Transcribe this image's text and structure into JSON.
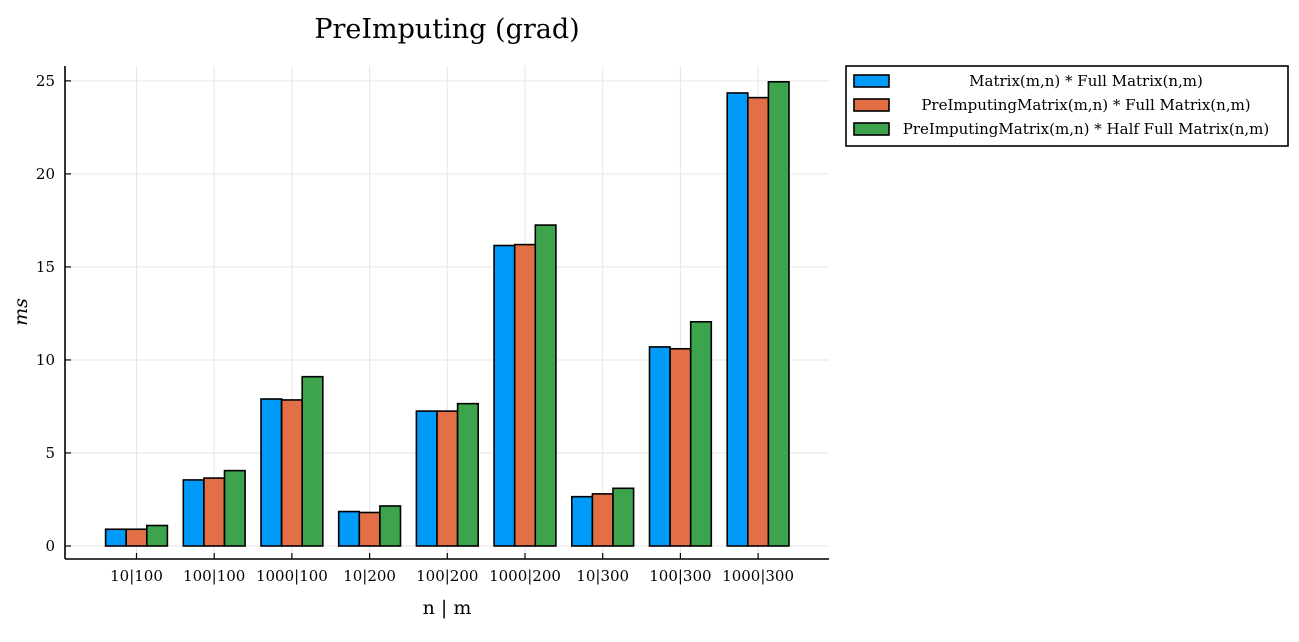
{
  "chart_data": {
    "type": "bar",
    "title": "PreImputing (grad)",
    "xlabel": "n | m",
    "ylabel": "ms",
    "categories": [
      "10|100",
      "100|100",
      "1000|100",
      "10|200",
      "100|200",
      "1000|200",
      "10|300",
      "100|300",
      "1000|300"
    ],
    "series": [
      {
        "name": "Matrix(m,n) * Full Matrix(n,m)",
        "color": "#009af9",
        "values": [
          0.9,
          3.55,
          7.9,
          1.85,
          7.25,
          16.15,
          2.65,
          10.7,
          24.35
        ]
      },
      {
        "name": "PreImputingMatrix(m,n) * Full Matrix(n,m)",
        "color": "#e26f46",
        "values": [
          0.9,
          3.65,
          7.85,
          1.8,
          7.25,
          16.2,
          2.8,
          10.6,
          24.1
        ]
      },
      {
        "name": "PreImputingMatrix(m,n) * Half Full Matrix(n,m)",
        "color": "#3da44d",
        "values": [
          1.1,
          4.05,
          9.1,
          2.15,
          7.65,
          17.25,
          3.1,
          12.05,
          24.95
        ]
      }
    ],
    "yticks": [
      0,
      5,
      10,
      15,
      20,
      25
    ],
    "ylim": [
      -0.7,
      25.8
    ],
    "grid": true,
    "legend_position": "outside top-right"
  }
}
